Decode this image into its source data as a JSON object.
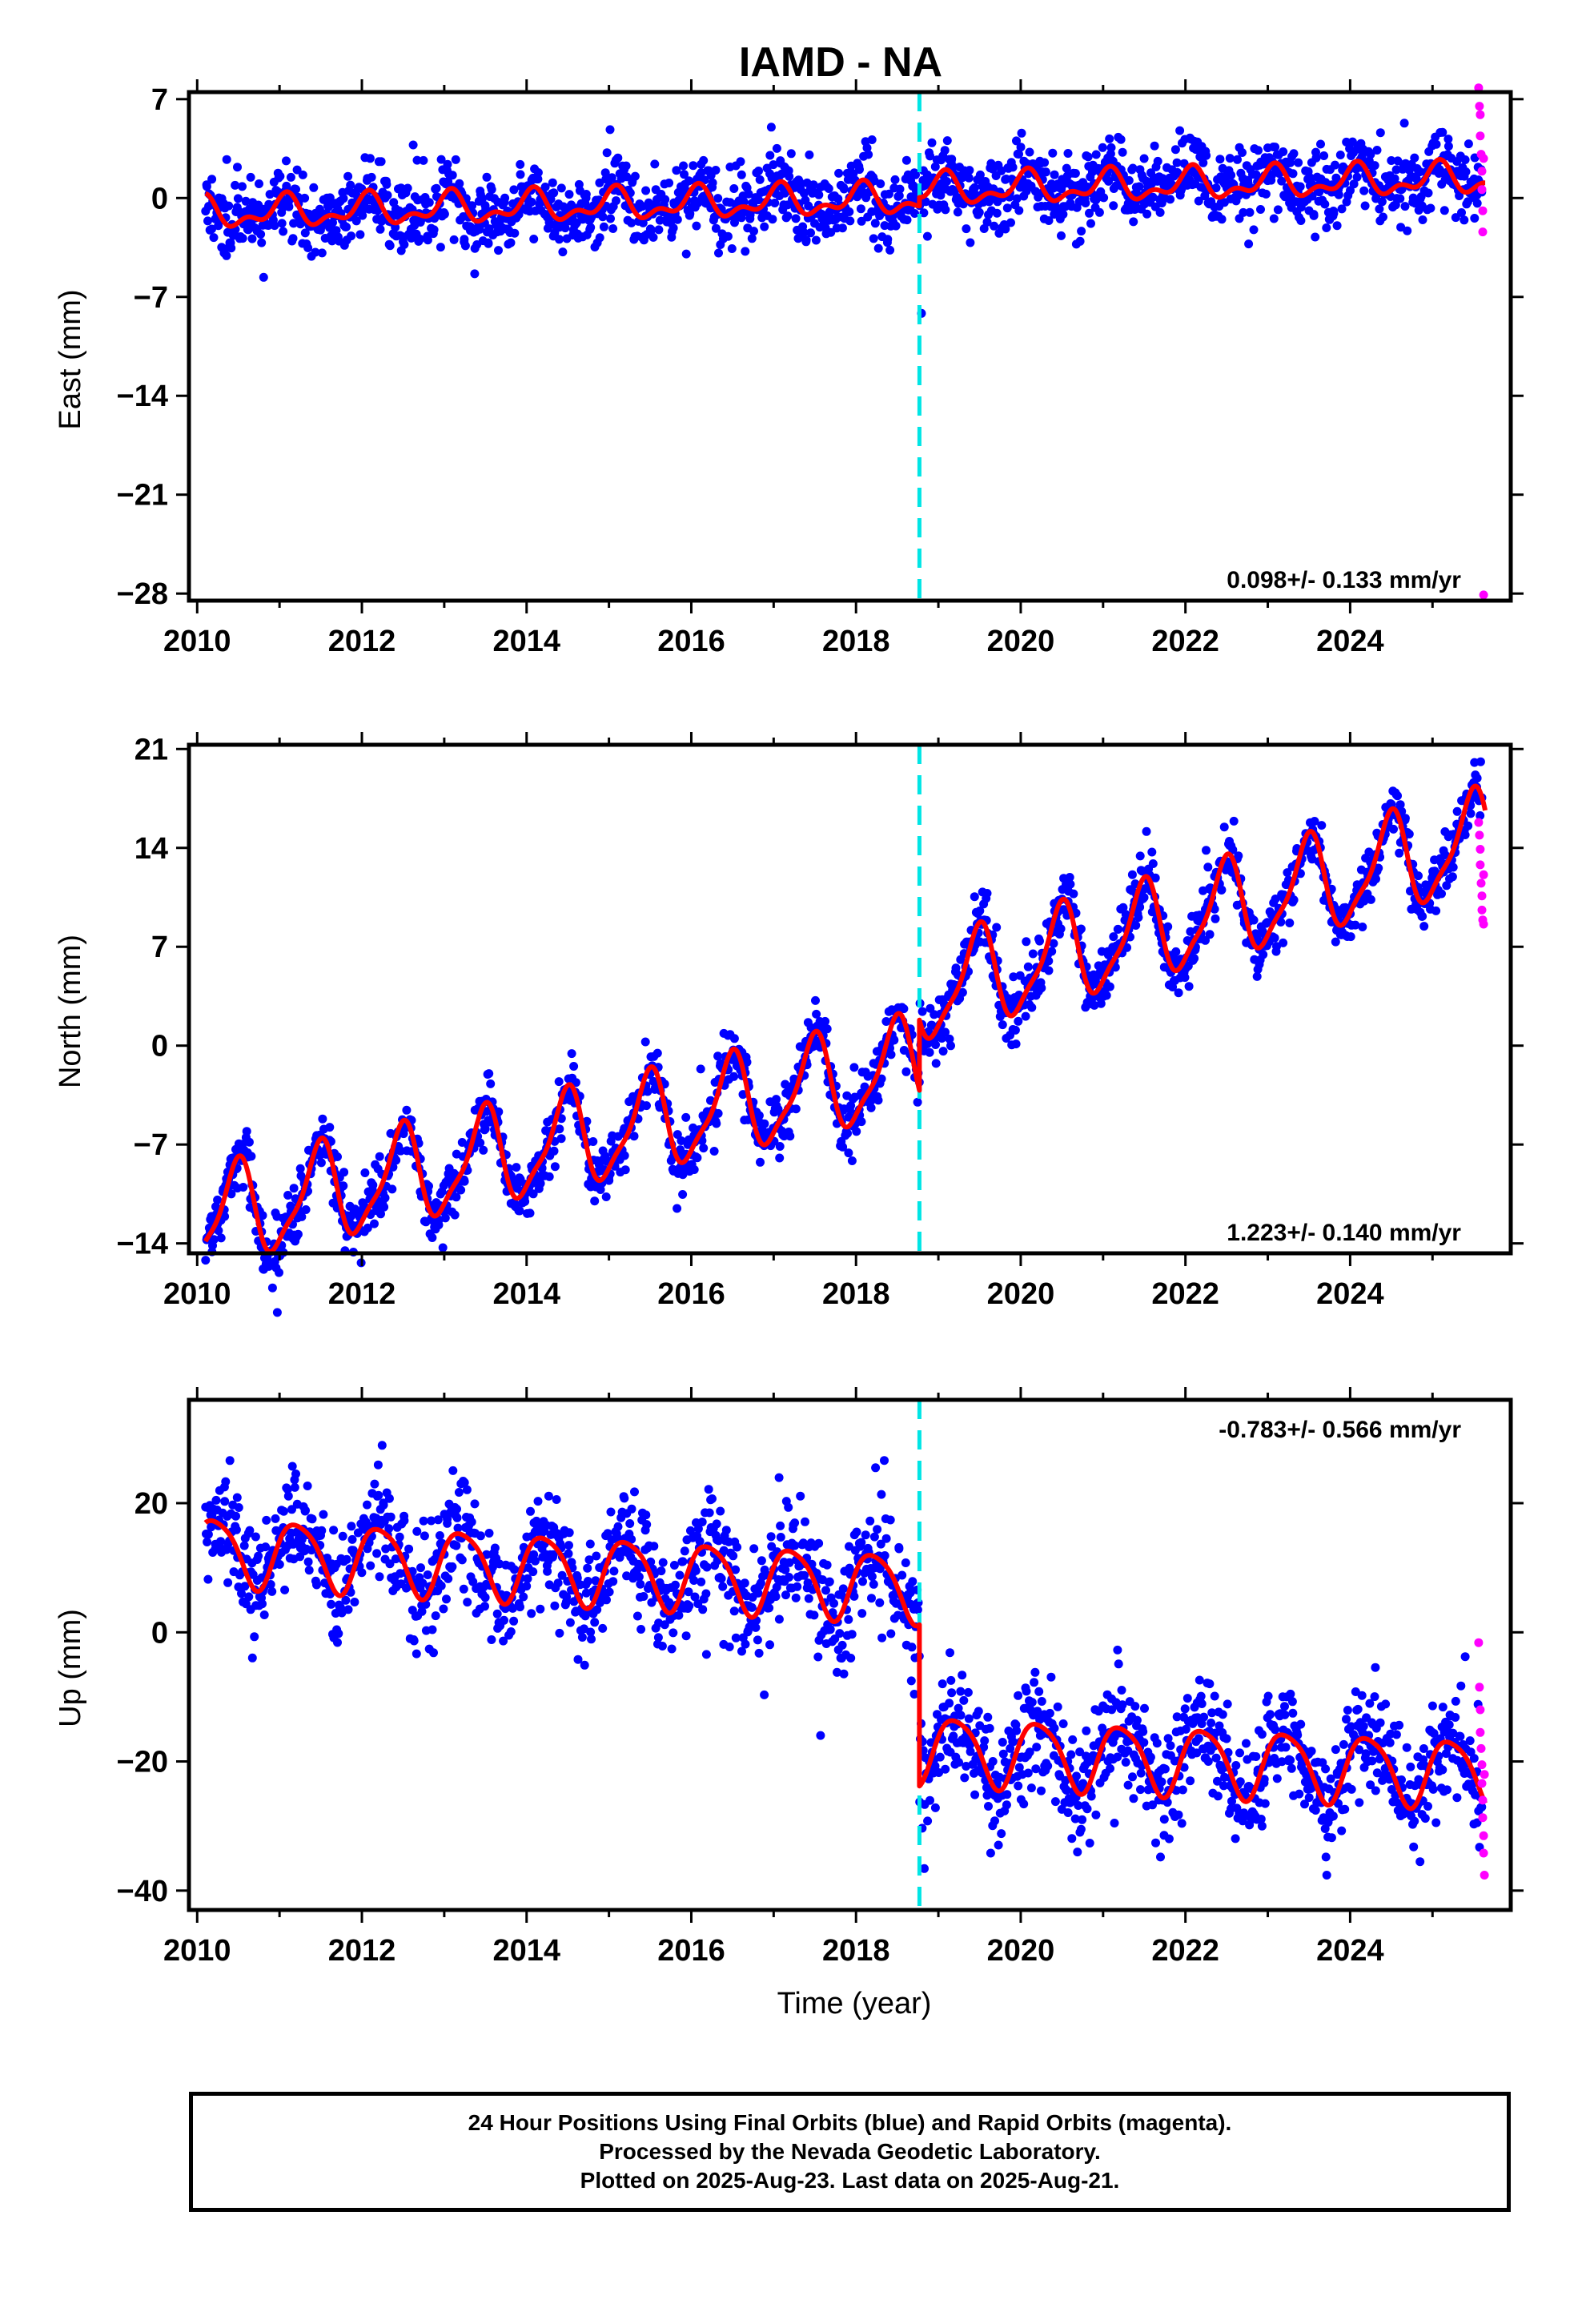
{
  "title": "IAMD - NA",
  "colors": {
    "final_orbits": "#0000ff",
    "rapid_orbits": "#ff00ff",
    "model": "#ff0000",
    "offset_line": "#00e5e5",
    "frame": "#000000"
  },
  "caption": {
    "line1": "24 Hour Positions Using Final Orbits (blue) and Rapid Orbits (magenta).",
    "line2": "Processed by the Nevada Geodetic Laboratory.",
    "line3": "Plotted on 2025-Aug-23. Last data on 2025-Aug-21."
  },
  "chart_data": [
    {
      "type": "scatter",
      "component": "east",
      "ylabel": "East (mm)",
      "xlabel": "",
      "xlim": [
        2009.9,
        2025.95
      ],
      "ylim": [
        -28.5,
        7.5
      ],
      "xticks": [
        2010,
        2012,
        2014,
        2016,
        2018,
        2020,
        2022,
        2024
      ],
      "yticks": [
        7,
        0,
        -7,
        -14,
        -21,
        -28
      ],
      "rate_text": "0.098+/- 0.133 mm/yr",
      "rate_position": "bottom-right",
      "offset_epoch": 2018.77,
      "last_epoch": 2025.64,
      "model": {
        "segments": [
          {
            "x0": 2010.1,
            "x1": 2018.77,
            "a": -1.1,
            "b": 0.12
          },
          {
            "x0": 2018.77,
            "x1": 2025.64,
            "a": 0.55,
            "b": 0.12
          }
        ],
        "amp": 0.9,
        "phase": 1.2,
        "amp2": 0.55,
        "phase2": 0.3
      },
      "scatter": {
        "noise": 1.3,
        "count": 1800,
        "seed": 11
      },
      "series": [
        {
          "name": "Final Orbits (blue)",
          "values_shown": "daily positions 2010.1-2025.6, scatter about model within approx. -7 to 5 mm"
        },
        {
          "name": "Rapid Orbits (magenta)",
          "values": [
            [
              2025.56,
              7.8
            ],
            [
              2025.57,
              6.5
            ],
            [
              2025.58,
              5.9
            ],
            [
              2025.58,
              4.4
            ],
            [
              2025.59,
              3.1
            ],
            [
              2025.6,
              1.9
            ],
            [
              2025.6,
              0.6
            ],
            [
              2025.61,
              -0.9
            ],
            [
              2025.61,
              -2.4
            ],
            [
              2025.62,
              2.8
            ],
            [
              2025.62,
              -28.1
            ]
          ]
        }
      ]
    },
    {
      "type": "scatter",
      "component": "north",
      "ylabel": "North (mm)",
      "xlabel": "",
      "xlim": [
        2009.9,
        2025.95
      ],
      "ylim": [
        -14.7,
        21.3
      ],
      "xticks": [
        2010,
        2012,
        2014,
        2016,
        2018,
        2020,
        2022,
        2024
      ],
      "yticks": [
        21,
        14,
        7,
        0,
        -7,
        -14
      ],
      "rate_text": "1.223+/- 0.140 mm/yr",
      "rate_position": "bottom-right",
      "offset_epoch": 2018.77,
      "last_epoch": 2025.64,
      "model": {
        "segments": [
          {
            "x0": 2010.1,
            "x1": 2018.77,
            "a": -12.3,
            "b": 1.26
          },
          {
            "x0": 2018.77,
            "x1": 2025.64,
            "a": 3.6,
            "b": 1.6
          }
        ],
        "amp": 3.3,
        "phase": -1.4,
        "amp2": 0.9,
        "phase2": 0.9
      },
      "scatter": {
        "noise": 1.05,
        "count": 1800,
        "seed": 23
      },
      "series": [
        {
          "name": "Final Orbits (blue)",
          "values_shown": "daily positions 2010.1-2025.6, trending from approx. -13 mm (2010) to 16 mm (2025.5)"
        },
        {
          "name": "Rapid Orbits (magenta)",
          "values": [
            [
              2025.56,
              15.8
            ],
            [
              2025.57,
              14.9
            ],
            [
              2025.58,
              13.9
            ],
            [
              2025.58,
              12.8
            ],
            [
              2025.59,
              11.5
            ],
            [
              2025.6,
              10.6
            ],
            [
              2025.6,
              9.6
            ],
            [
              2025.61,
              8.9
            ],
            [
              2025.62,
              8.6
            ],
            [
              2025.62,
              12.1
            ]
          ]
        }
      ]
    },
    {
      "type": "scatter",
      "component": "up",
      "ylabel": "Up (mm)",
      "xlabel": "Time (year)",
      "xlim": [
        2009.9,
        2025.95
      ],
      "ylim": [
        -43,
        36
      ],
      "xticks": [
        2010,
        2012,
        2014,
        2016,
        2018,
        2020,
        2022,
        2024
      ],
      "yticks": [
        20,
        0,
        -20,
        -40
      ],
      "rate_text": "-0.783+/- 0.566 mm/yr",
      "rate_position": "top-right",
      "offset_epoch": 2018.77,
      "last_epoch": 2025.64,
      "model": {
        "segments": [
          {
            "x0": 2010.1,
            "x1": 2018.77,
            "a": 12.8,
            "b": -0.67
          },
          {
            "x0": 2018.77,
            "x1": 2025.64,
            "a": -18.0,
            "b": -0.55
          }
        ],
        "amp": 5.2,
        "phase": 0.2,
        "amp2": 0.9,
        "phase2": 1.5
      },
      "scatter": {
        "noise": 4.4,
        "count": 1800,
        "seed": 37
      },
      "series": [
        {
          "name": "Final Orbits (blue)",
          "values_shown": "daily positions 2010.1-2025.6, approx. -5 to 30 mm before 2018.77 and -40 to -3 mm after"
        },
        {
          "name": "Rapid Orbits (magenta)",
          "values": [
            [
              2025.56,
              -1.6
            ],
            [
              2025.57,
              -8.5
            ],
            [
              2025.58,
              -12.0
            ],
            [
              2025.58,
              -15.5
            ],
            [
              2025.59,
              -18.0
            ],
            [
              2025.6,
              -20.5
            ],
            [
              2025.6,
              -23.4
            ],
            [
              2025.61,
              -26.0
            ],
            [
              2025.61,
              -28.7
            ],
            [
              2025.62,
              -31.5
            ],
            [
              2025.62,
              -34.2
            ],
            [
              2025.63,
              -37.6
            ],
            [
              2025.63,
              -22.0
            ]
          ]
        }
      ]
    }
  ]
}
